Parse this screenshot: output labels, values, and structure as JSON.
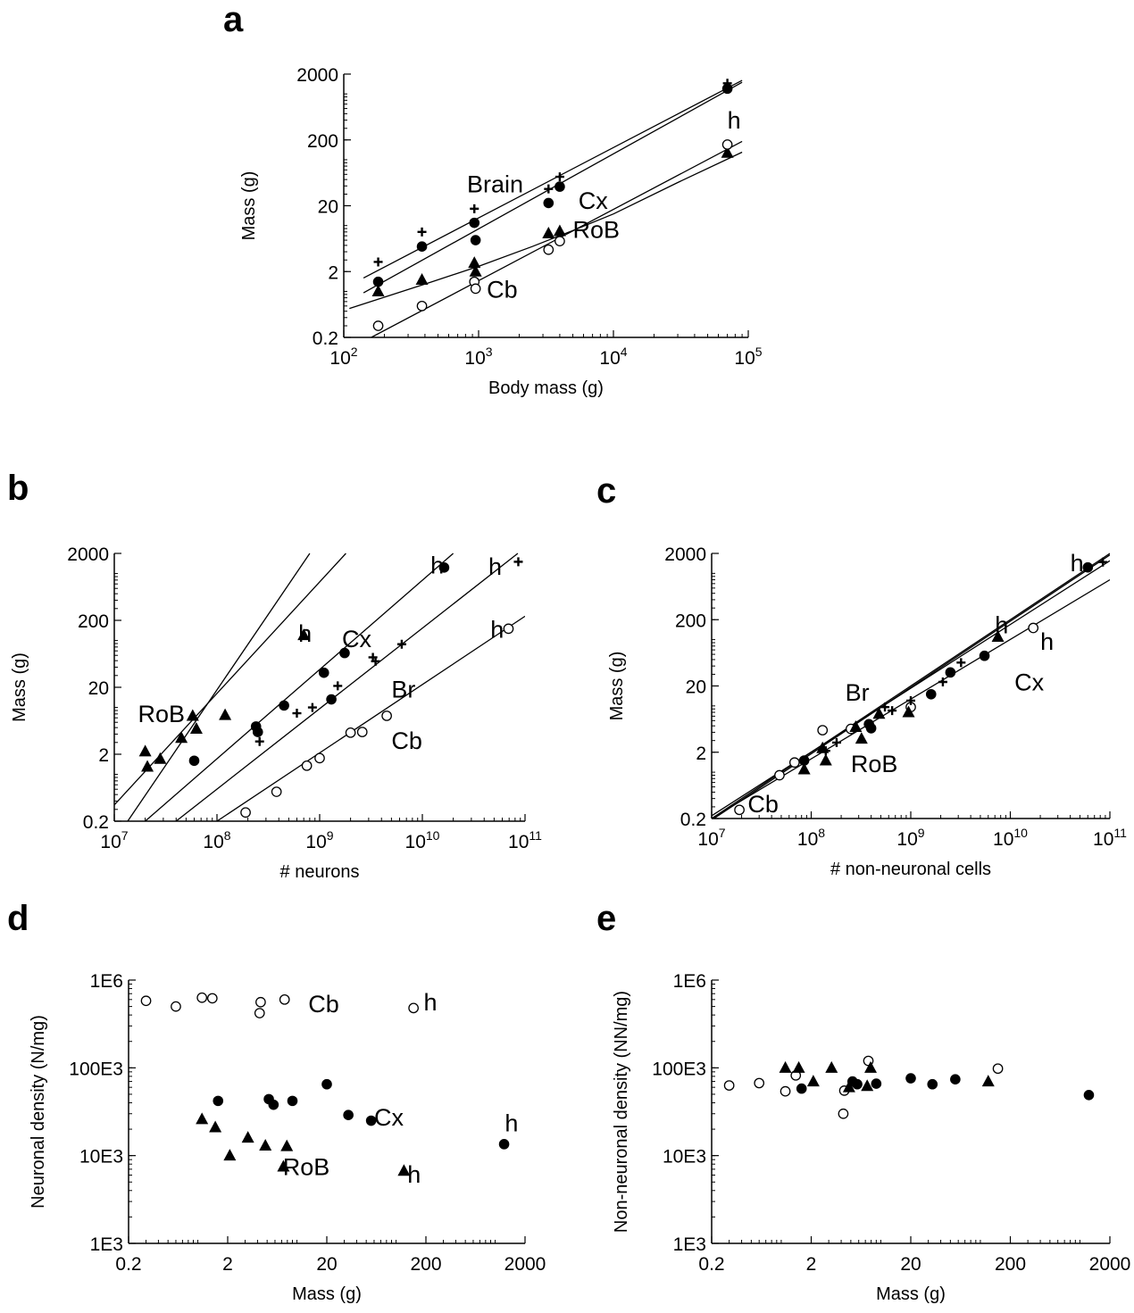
{
  "charts": [
    {
      "panel": "a",
      "type": "scatter",
      "xlabel": "Body mass (g)",
      "ylabel": "Mass (g)",
      "xscale": "log",
      "yscale": "log",
      "xlim": [
        100,
        100000
      ],
      "ylim": [
        0.2,
        2000
      ],
      "xticks": [
        {
          "base": "10",
          "exp": "2"
        },
        {
          "base": "10",
          "exp": "3"
        },
        {
          "base": "10",
          "exp": "4"
        },
        {
          "base": "10",
          "exp": "5"
        }
      ],
      "yticks": [
        "0.2",
        "2",
        "20",
        "200",
        "2000"
      ],
      "series": [
        {
          "key": "brain",
          "marker": "plus",
          "x": [
            180,
            380,
            930,
            3300,
            4000,
            70000
          ],
          "y": [
            2.8,
            8.0,
            18.0,
            36.0,
            55.0,
            1450.0
          ]
        },
        {
          "key": "cx",
          "marker": "circle-filled",
          "x": [
            180,
            380,
            930,
            950,
            3300,
            4000,
            70000
          ],
          "y": [
            1.4,
            4.8,
            11.0,
            6.0,
            22.0,
            39.0,
            1200.0
          ]
        },
        {
          "key": "rob",
          "marker": "triangle",
          "x": [
            180,
            380,
            930,
            950,
            3300,
            4000,
            70000
          ],
          "y": [
            1.0,
            1.5,
            2.7,
            2.0,
            7.6,
            8.2,
            127.0
          ]
        },
        {
          "key": "cb",
          "marker": "circle-open",
          "x": [
            180,
            380,
            930,
            950,
            3300,
            4000,
            70000
          ],
          "y": [
            0.3,
            0.6,
            1.4,
            1.1,
            4.3,
            5.8,
            170.0
          ]
        }
      ],
      "lines": [
        {
          "x": [
            140,
            90000
          ],
          "y": [
            1.6,
            1600
          ]
        },
        {
          "x": [
            140,
            90000
          ],
          "y": [
            0.95,
            1500
          ]
        },
        {
          "x": [
            160,
            90000
          ],
          "y": [
            0.2,
            190
          ]
        },
        {
          "x": [
            110,
            450,
            1000,
            2500,
            5000,
            10000,
            30000,
            90000
          ],
          "y": [
            0.55,
            1.4,
            2.4,
            4.8,
            8.4,
            15.0,
            45.0,
            130.0
          ]
        }
      ],
      "annotations": [
        {
          "text": "Brain",
          "x": 820,
          "y": 32
        },
        {
          "text": "Cx",
          "x": 5500,
          "y": 18
        },
        {
          "text": "RoB",
          "x": 5000,
          "y": 6.5
        },
        {
          "text": "Cb",
          "x": 1150,
          "y": 0.8
        },
        {
          "text": "h",
          "x": 70000,
          "y": 300
        }
      ]
    },
    {
      "panel": "b",
      "type": "scatter",
      "xlabel": "# neurons",
      "ylabel": "Mass (g)",
      "xscale": "log",
      "yscale": "log",
      "xlim": [
        10000000,
        100000000000
      ],
      "ylim": [
        0.2,
        2000
      ],
      "xticks": [
        {
          "base": "10",
          "exp": "7"
        },
        {
          "base": "10",
          "exp": "8"
        },
        {
          "base": "10",
          "exp": "9"
        },
        {
          "base": "10",
          "exp": "10"
        },
        {
          "base": "10",
          "exp": "11"
        }
      ],
      "yticks": [
        "0.2",
        "2",
        "20",
        "200",
        "2000"
      ],
      "series": [
        {
          "key": "rob",
          "marker": "triangle",
          "x": [
            20000000,
            21000000,
            28000000,
            45000000,
            58000000,
            63000000,
            120000000,
            700000000
          ],
          "y": [
            2.2,
            1.3,
            1.7,
            3.5,
            7.5,
            4.8,
            7.7,
            120.0
          ]
        },
        {
          "key": "cx",
          "marker": "circle-filled",
          "x": [
            60000000,
            240000000,
            250000000,
            450000000,
            1100000000,
            1300000000,
            1750000000,
            16300000000
          ],
          "y": [
            1.6,
            5.2,
            4.3,
            10.7,
            33.0,
            13.2,
            65.0,
            1230.0
          ]
        },
        {
          "key": "brain",
          "marker": "plus",
          "x": [
            260000000,
            600000000,
            850000000,
            1500000000,
            3300000000,
            3500000000,
            6300000000,
            86000000000
          ],
          "y": [
            3.1,
            8.2,
            10.0,
            21.0,
            56.0,
            49.0,
            88.0,
            1500.0
          ]
        },
        {
          "key": "cb",
          "marker": "circle-open",
          "x": [
            190000000,
            380000000,
            750000000,
            1000000000,
            2000000000,
            2600000000,
            4500000000,
            69000000000
          ],
          "y": [
            0.27,
            0.55,
            1.35,
            1.75,
            4.2,
            4.3,
            7.5,
            150.0
          ]
        }
      ],
      "lines": [
        {
          "x": [
            10000000,
            1800000000
          ],
          "y": [
            0.35,
            2000
          ]
        },
        {
          "x": [
            13500000,
            800000000
          ],
          "y": [
            0.2,
            2000
          ]
        },
        {
          "x": [
            20000000,
            20000000000
          ],
          "y": [
            0.2,
            2000
          ]
        },
        {
          "x": [
            40000000,
            85000000000
          ],
          "y": [
            0.2,
            2000
          ]
        },
        {
          "x": [
            100000000,
            100000000000
          ],
          "y": [
            0.2,
            230
          ]
        }
      ],
      "annotations": [
        {
          "text": "RoB",
          "x": 17000000,
          "y": 6.0
        },
        {
          "text": "h",
          "x": 620000000,
          "y": 95
        },
        {
          "text": "Cx",
          "x": 1650000000,
          "y": 80
        },
        {
          "text": "Br",
          "x": 5000000000,
          "y": 14
        },
        {
          "text": "Cb",
          "x": 5000000000,
          "y": 2.4
        },
        {
          "text": "h",
          "x": 12000000000,
          "y": 1000
        },
        {
          "text": "h",
          "x": 44000000000,
          "y": 950
        },
        {
          "text": "h",
          "x": 46000000000,
          "y": 110
        }
      ]
    },
    {
      "panel": "c",
      "type": "scatter",
      "xlabel": "# non-neuronal cells",
      "ylabel": "Mass (g)",
      "xscale": "log",
      "yscale": "log",
      "xlim": [
        10000000,
        100000000000
      ],
      "ylim": [
        0.2,
        2000
      ],
      "xticks": [
        {
          "base": "10",
          "exp": "7"
        },
        {
          "base": "10",
          "exp": "8"
        },
        {
          "base": "10",
          "exp": "9"
        },
        {
          "base": "10",
          "exp": "10"
        },
        {
          "base": "10",
          "exp": "11"
        }
      ],
      "yticks": [
        "0.2",
        "2",
        "20",
        "200",
        "2000"
      ],
      "series": [
        {
          "key": "cb",
          "marker": "circle-open",
          "x": [
            19000000,
            48000000,
            68000000,
            130000000,
            250000000,
            1000000000,
            17000000000
          ],
          "y": [
            0.27,
            0.9,
            1.4,
            4.3,
            4.5,
            9.6,
            150.0
          ]
        },
        {
          "key": "rob",
          "marker": "triangle",
          "x": [
            85000000,
            130000000,
            140000000,
            280000000,
            320000000,
            480000000,
            950000000,
            7500000000
          ],
          "y": [
            1.1,
            2.3,
            1.5,
            4.8,
            3.2,
            7.6,
            8.0,
            110.0
          ]
        },
        {
          "key": "cx",
          "marker": "circle-filled",
          "x": [
            85000000,
            380000000,
            400000000,
            1600000000,
            2500000000,
            5500000000,
            60000000000
          ],
          "y": [
            1.5,
            5.3,
            4.6,
            15.0,
            32.0,
            57.0,
            1230.0
          ]
        },
        {
          "key": "brain",
          "marker": "plus",
          "x": [
            140000000,
            180000000,
            550000000,
            650000000,
            1000000000,
            2100000000,
            3200000000,
            85000000000
          ],
          "y": [
            2.1,
            2.8,
            9.6,
            8.5,
            12.0,
            23.0,
            45.0,
            1480.0
          ]
        }
      ],
      "lines": [
        {
          "x": [
            10000000,
            100000000000
          ],
          "y": [
            0.2,
            2000
          ]
        },
        {
          "x": [
            10000000,
            100000000000
          ],
          "y": [
            0.19,
            1900
          ]
        },
        {
          "x": [
            10000000,
            100000000000
          ],
          "y": [
            0.22,
            1550
          ]
        },
        {
          "x": [
            10000000,
            100000000000
          ],
          "y": [
            0.2,
            800
          ]
        }
      ],
      "annotations": [
        {
          "text": "Br",
          "x": 220000000,
          "y": 12
        },
        {
          "text": "RoB",
          "x": 250000000,
          "y": 1.0
        },
        {
          "text": "Cb",
          "x": 23000000,
          "y": 0.25
        },
        {
          "text": "h",
          "x": 7000000000,
          "y": 125
        },
        {
          "text": "Cx",
          "x": 11000000000,
          "y": 17
        },
        {
          "text": "h",
          "x": 20000000000,
          "y": 70
        },
        {
          "text": "h",
          "x": 40000000000,
          "y": 1080
        }
      ]
    },
    {
      "panel": "d",
      "type": "scatter",
      "xlabel": "Mass (g)",
      "ylabel": "Neuronal density (N/mg)",
      "xscale": "log",
      "yscale": "log",
      "xlim": [
        0.2,
        2000
      ],
      "ylim": [
        1000,
        1000000
      ],
      "xticks": [
        {
          "base": "0.2"
        },
        {
          "base": "2"
        },
        {
          "base": "20"
        },
        {
          "base": "200"
        },
        {
          "base": "2000"
        }
      ],
      "yticks": [
        "1E3",
        "10E3",
        "100E3",
        "1E6"
      ],
      "series": [
        {
          "key": "cb",
          "marker": "circle-open",
          "x": [
            0.3,
            0.6,
            1.1,
            1.4,
            4.2,
            4.3,
            7.5,
            150.0
          ],
          "y": [
            580000,
            500000,
            630000,
            620000,
            420000,
            560000,
            600000,
            480000
          ]
        },
        {
          "key": "cx",
          "marker": "circle-filled",
          "x": [
            1.6,
            5.2,
            5.8,
            9.0,
            20.0,
            33.0,
            56.0,
            1230.0
          ],
          "y": [
            42000,
            44000,
            38000,
            42000,
            65000,
            29000,
            25000,
            13500
          ]
        },
        {
          "key": "rob",
          "marker": "triangle",
          "x": [
            1.1,
            1.5,
            2.1,
            3.2,
            4.8,
            7.3,
            7.9,
            120.0
          ],
          "y": [
            26000,
            21000,
            10000,
            16000,
            13000,
            7500,
            12800,
            6700
          ]
        }
      ],
      "annotations": [
        {
          "text": "Cb",
          "x": 13,
          "y": 430000
        },
        {
          "text": "h",
          "x": 190,
          "y": 450000
        },
        {
          "text": "Cx",
          "x": 60,
          "y": 22000
        },
        {
          "text": "h",
          "x": 1250,
          "y": 19000
        },
        {
          "text": "RoB",
          "x": 7.2,
          "y": 6000
        },
        {
          "text": "h",
          "x": 130,
          "y": 4900
        }
      ]
    },
    {
      "panel": "e",
      "type": "scatter",
      "xlabel": "Mass (g)",
      "ylabel": "Non-neuronal density (NN/mg)",
      "xscale": "log",
      "yscale": "log",
      "xlim": [
        0.2,
        2000
      ],
      "ylim": [
        1000,
        1000000
      ],
      "xticks": [
        {
          "base": "0.2"
        },
        {
          "base": "2"
        },
        {
          "base": "20"
        },
        {
          "base": "200"
        },
        {
          "base": "2000"
        }
      ],
      "yticks": [
        "1E3",
        "10E3",
        "100E3",
        "1E6"
      ],
      "series": [
        {
          "key": "cb",
          "marker": "circle-open",
          "x": [
            0.3,
            0.6,
            1.1,
            1.4,
            4.2,
            4.3,
            7.5,
            150.0
          ],
          "y": [
            63000,
            67000,
            54000,
            82000,
            30000,
            55000,
            120000,
            98000
          ]
        },
        {
          "key": "rob",
          "marker": "triangle",
          "x": [
            1.1,
            1.5,
            2.1,
            3.2,
            4.8,
            7.3,
            7.9,
            120.0
          ],
          "y": [
            100000,
            100000,
            70000,
            100000,
            60000,
            62000,
            100000,
            70000
          ]
        },
        {
          "key": "cx",
          "marker": "circle-filled",
          "x": [
            1.6,
            5.2,
            5.8,
            9.0,
            20.0,
            33.0,
            56.0,
            1230.0
          ],
          "y": [
            58000,
            70000,
            65000,
            66000,
            76000,
            65000,
            74000,
            49000
          ]
        }
      ],
      "annotations": []
    }
  ],
  "chart_data": [
    {
      "panel": "a",
      "type": "scatter",
      "xlabel": "Body mass (g)",
      "ylabel": "Mass (g)"
    },
    {
      "panel": "b",
      "type": "scatter",
      "xlabel": "# neurons",
      "ylabel": "Mass (g)"
    },
    {
      "panel": "c",
      "type": "scatter",
      "xlabel": "# non-neuronal cells",
      "ylabel": "Mass (g)"
    },
    {
      "panel": "d",
      "type": "scatter",
      "xlabel": "Mass (g)",
      "ylabel": "Neuronal density (N/mg)"
    },
    {
      "panel": "e",
      "type": "scatter",
      "xlabel": "Mass (g)",
      "ylabel": "Non-neuronal density (NN/mg)"
    }
  ]
}
